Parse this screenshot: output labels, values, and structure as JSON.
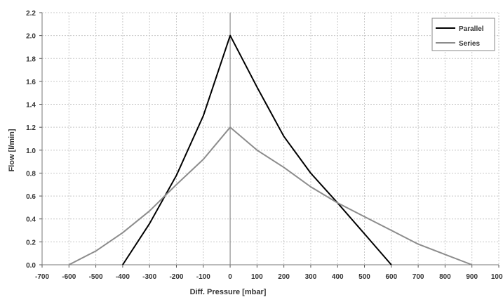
{
  "chart_data": {
    "type": "line",
    "title": "",
    "xlabel": "Diff. Pressure [mbar]",
    "ylabel": "Flow [l/min]",
    "xlim": [
      -700,
      1000
    ],
    "ylim": [
      0,
      2.2
    ],
    "x_ticks": [
      "-700",
      "-600",
      "-500",
      "-400",
      "-300",
      "-200",
      "-100",
      "0",
      "100",
      "200",
      "300",
      "400",
      "500",
      "600",
      "700",
      "800",
      "900",
      "1000"
    ],
    "y_ticks": [
      "0.0",
      "0.2",
      "0.4",
      "0.6",
      "0.8",
      "1.0",
      "1.2",
      "1.4",
      "1.6",
      "1.8",
      "2.0",
      "2.2"
    ],
    "grid": true,
    "legend_position": "top-right",
    "series": [
      {
        "name": "Parallel",
        "color": "#000000",
        "points": [
          [
            -400,
            0.0
          ],
          [
            -300,
            0.36
          ],
          [
            -200,
            0.78
          ],
          [
            -100,
            1.3
          ],
          [
            0,
            2.0
          ],
          [
            100,
            1.55
          ],
          [
            200,
            1.12
          ],
          [
            300,
            0.8
          ],
          [
            400,
            0.54
          ],
          [
            500,
            0.27
          ],
          [
            600,
            0.0
          ]
        ]
      },
      {
        "name": "Series",
        "color": "#8c8c8c",
        "points": [
          [
            -600,
            0.0
          ],
          [
            -500,
            0.12
          ],
          [
            -400,
            0.28
          ],
          [
            -300,
            0.47
          ],
          [
            -200,
            0.7
          ],
          [
            -100,
            0.92
          ],
          [
            0,
            1.2
          ],
          [
            100,
            1.0
          ],
          [
            200,
            0.85
          ],
          [
            300,
            0.68
          ],
          [
            400,
            0.54
          ],
          [
            500,
            0.42
          ],
          [
            600,
            0.3
          ],
          [
            700,
            0.18
          ],
          [
            800,
            0.09
          ],
          [
            900,
            0.0
          ]
        ]
      }
    ]
  }
}
